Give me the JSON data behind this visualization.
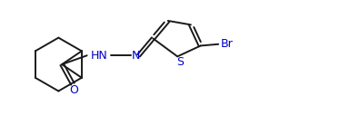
{
  "bg_color": "#ffffff",
  "line_color": "#1a1a1a",
  "label_N": "N",
  "label_HN": "HN",
  "label_O": "O",
  "label_S": "S",
  "label_Br": "Br",
  "color_black": "#1a1a1a",
  "color_blue": "#0000cd",
  "figsize": [
    3.74,
    1.49
  ],
  "dpi": 100,
  "lw": 1.4
}
